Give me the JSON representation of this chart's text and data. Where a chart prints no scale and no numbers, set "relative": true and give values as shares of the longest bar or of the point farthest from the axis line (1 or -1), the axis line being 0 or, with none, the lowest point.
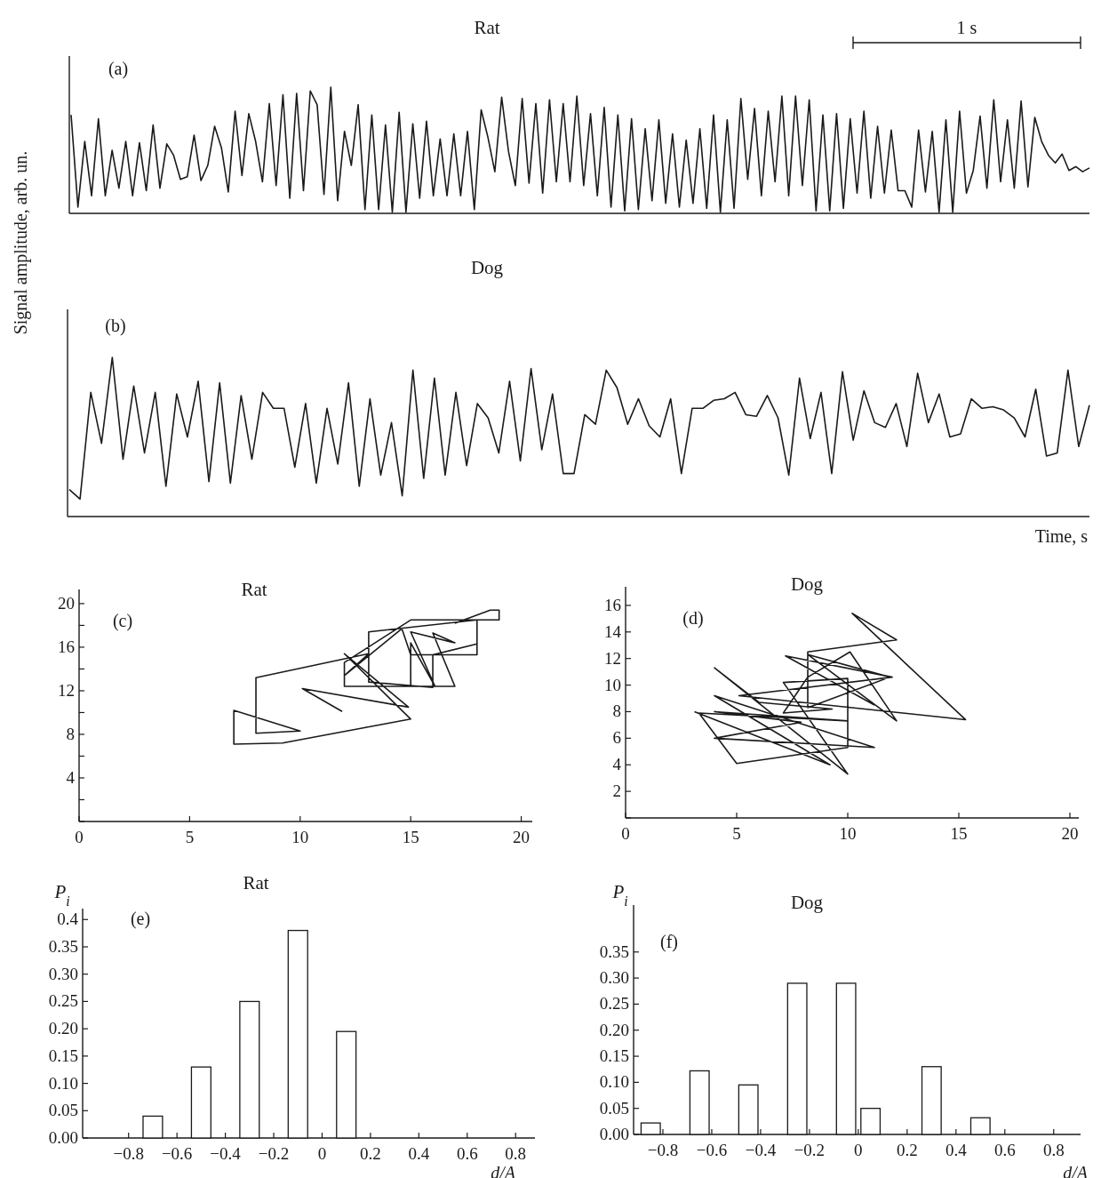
{
  "chart_data": [
    {
      "type": "line",
      "title": "Rat",
      "ylabel": "Signal amplitude, arb. un.",
      "annotations": [
        "(a)",
        "1 s"
      ],
      "relative": true,
      "color": "#1a1a1a",
      "categories": [
        null,
        null,
        null,
        null,
        null,
        null,
        null,
        null,
        null,
        null,
        null,
        null,
        null,
        null,
        null,
        null,
        null,
        null,
        null,
        null,
        null,
        null,
        null,
        null,
        null,
        null,
        null,
        null,
        null,
        null,
        null,
        null,
        null,
        null,
        null,
        null,
        null,
        null,
        null,
        null,
        null,
        null,
        null,
        null,
        null,
        null,
        null,
        null,
        null,
        null,
        null,
        null,
        null,
        null,
        null,
        null,
        null,
        null,
        null,
        null,
        null,
        null,
        null,
        null,
        null,
        null,
        null,
        null,
        null,
        null,
        null,
        null,
        null,
        null,
        null,
        null,
        null,
        null,
        null,
        null,
        null,
        null,
        null,
        null,
        null,
        null,
        null,
        null,
        null,
        null,
        null,
        null,
        null,
        null,
        null,
        null,
        null,
        null,
        null,
        null,
        null,
        null,
        null,
        null,
        null,
        null,
        null,
        null,
        null,
        null,
        null,
        null,
        null,
        null,
        null,
        null,
        null,
        null,
        null,
        null,
        null,
        null,
        null,
        null,
        null,
        null,
        null,
        null,
        null,
        null,
        null,
        null,
        null,
        null,
        null,
        null,
        null,
        null,
        null,
        null,
        null,
        null,
        null,
        null,
        null,
        null,
        null,
        null,
        null,
        null
      ],
      "values": [
        0.78,
        0.05,
        0.57,
        0.14,
        0.75,
        0.14,
        0.5,
        0.2,
        0.57,
        0.14,
        0.56,
        0.18,
        0.7,
        0.2,
        0.55,
        0.46,
        0.27,
        0.29,
        0.62,
        0.26,
        0.38,
        0.69,
        0.52,
        0.17,
        0.81,
        0.3,
        0.79,
        0.57,
        0.25,
        0.87,
        0.22,
        0.94,
        0.12,
        0.95,
        0.18,
        0.97,
        0.86,
        0.15,
        1.0,
        0.1,
        0.65,
        0.38,
        0.86,
        0.03,
        0.78,
        0.03,
        0.7,
        0.01,
        0.8,
        0.01,
        0.71,
        0.12,
        0.73,
        0.14,
        0.59,
        0.14,
        0.63,
        0.14,
        0.65,
        0.03,
        0.82,
        0.6,
        0.33,
        0.92,
        0.49,
        0.22,
        0.91,
        0.24,
        0.87,
        0.16,
        0.9,
        0.25,
        0.87,
        0.25,
        0.93,
        0.22,
        0.79,
        0.14,
        0.84,
        0.05,
        0.78,
        0.02,
        0.75,
        0.03,
        0.67,
        0.1,
        0.74,
        0.08,
        0.63,
        0.05,
        0.58,
        0.08,
        0.67,
        0.04,
        0.78,
        0.01,
        0.74,
        0.04,
        0.91,
        0.27,
        0.83,
        0.14,
        0.81,
        0.25,
        0.93,
        0.14,
        0.93,
        0.22,
        0.9,
        0.02,
        0.78,
        0.02,
        0.79,
        0.04,
        0.75,
        0.16,
        0.81,
        0.12,
        0.69,
        0.16,
        0.66,
        0.18,
        0.18,
        0.05,
        0.66,
        0.17,
        0.65,
        0.01,
        0.74,
        0.01,
        0.81,
        0.16,
        0.34,
        0.77,
        0.2,
        0.9,
        0.25,
        0.74,
        0.2,
        0.89,
        0.21,
        0.76,
        0.57,
        0.46,
        0.4,
        0.47,
        0.34,
        0.37,
        0.33,
        0.36
      ]
    },
    {
      "type": "line",
      "title": "Dog",
      "xlabel": "Time, s",
      "annotations": [
        "(b)"
      ],
      "relative": true,
      "color": "#1a1a1a",
      "categories": [
        null,
        null,
        null,
        null,
        null,
        null,
        null,
        null,
        null,
        null,
        null,
        null,
        null,
        null,
        null,
        null,
        null,
        null,
        null,
        null,
        null,
        null,
        null,
        null,
        null,
        null,
        null,
        null,
        null,
        null,
        null,
        null,
        null,
        null,
        null,
        null,
        null,
        null,
        null,
        null,
        null,
        null,
        null,
        null,
        null,
        null,
        null,
        null,
        null,
        null,
        null,
        null,
        null,
        null,
        null,
        null,
        null,
        null,
        null,
        null,
        null,
        null,
        null,
        null,
        null,
        null,
        null,
        null,
        null,
        null,
        null,
        null,
        null,
        null,
        null,
        null,
        null,
        null,
        null,
        null,
        null,
        null,
        null,
        null,
        null,
        null,
        null,
        null,
        null,
        null,
        null,
        null,
        null,
        null,
        null,
        null
      ],
      "values": [
        0.17,
        0.11,
        0.78,
        0.46,
        1.0,
        0.36,
        0.82,
        0.4,
        0.78,
        0.19,
        0.77,
        0.5,
        0.85,
        0.22,
        0.84,
        0.21,
        0.76,
        0.36,
        0.78,
        0.68,
        0.68,
        0.31,
        0.71,
        0.21,
        0.68,
        0.33,
        0.84,
        0.19,
        0.74,
        0.26,
        0.59,
        0.13,
        0.92,
        0.24,
        0.87,
        0.26,
        0.78,
        0.32,
        0.71,
        0.62,
        0.4,
        0.85,
        0.35,
        0.93,
        0.42,
        0.77,
        0.27,
        0.27,
        0.64,
        0.58,
        0.92,
        0.81,
        0.58,
        0.74,
        0.57,
        0.5,
        0.74,
        0.27,
        0.68,
        0.68,
        0.73,
        0.74,
        0.78,
        0.64,
        0.63,
        0.76,
        0.62,
        0.26,
        0.87,
        0.49,
        0.78,
        0.27,
        0.91,
        0.48,
        0.79,
        0.59,
        0.56,
        0.71,
        0.44,
        0.9,
        0.59,
        0.77,
        0.5,
        0.52,
        0.74,
        0.68,
        0.69,
        0.67,
        0.62,
        0.5,
        0.8,
        0.38,
        0.4,
        0.92,
        0.44,
        0.7
      ]
    },
    {
      "type": "line",
      "title": "Rat",
      "annotations": [
        "(c)"
      ],
      "color": "#1a1a1a",
      "xlim": [
        0,
        20.5
      ],
      "ylim": [
        0,
        21.3
      ],
      "xticks": [
        0,
        5,
        10,
        15,
        20
      ],
      "yticks": [
        {
          "value": 0,
          "label": null
        },
        {
          "value": 2,
          "label": null
        },
        4,
        {
          "value": 6,
          "label": null
        },
        8,
        {
          "value": 10,
          "label": null
        },
        12,
        {
          "value": 14,
          "label": null
        },
        16,
        {
          "value": 18,
          "label": null
        },
        20
      ],
      "x": [
        11.9,
        10.1,
        14.9,
        12.0,
        15.0,
        9.2,
        7.0,
        7.0,
        10.0,
        8.0,
        8.0,
        13.1,
        12.0,
        12.0,
        17.0,
        16.0,
        17.0,
        15.0,
        16.1,
        15.0,
        15.0,
        15.0,
        18.0,
        18.0,
        13.1,
        13.1,
        16.0,
        16.0,
        18.0,
        18.0,
        15.0,
        14.6,
        12.0,
        12.0,
        15.0,
        19.0,
        19.0,
        18.6,
        17.0
      ],
      "values": [
        10.1,
        12.2,
        10.5,
        15.4,
        9.4,
        7.2,
        7.1,
        10.2,
        8.3,
        8.1,
        13.2,
        15.4,
        13.4,
        12.4,
        12.4,
        17.3,
        16.4,
        17.4,
        12.4,
        16.4,
        12.4,
        15.3,
        15.3,
        18.5,
        17.4,
        12.8,
        12.3,
        15.3,
        16.3,
        15.3,
        15.3,
        17.7,
        13.4,
        14.6,
        18.5,
        18.5,
        19.4,
        19.4,
        18.2
      ]
    },
    {
      "type": "line",
      "title": "Dog",
      "annotations": [
        "(d)"
      ],
      "color": "#1a1a1a",
      "xlim": [
        0,
        20.4
      ],
      "ylim": [
        0,
        17.4
      ],
      "xticks": [
        0,
        5,
        10,
        15,
        20
      ],
      "yticks": [
        {
          "value": 0,
          "label": null
        },
        2,
        4,
        6,
        8,
        10,
        12,
        14,
        16
      ],
      "x": [
        3.1,
        9.2,
        4.0,
        11.2,
        4.0,
        7.9,
        4.0,
        10.0,
        3.3,
        5.0,
        10.0,
        10.0,
        7.1,
        10.0,
        4.0,
        6.0,
        9.3,
        7.1,
        8.2,
        10.1,
        12.2,
        8.2,
        11.9,
        8.2,
        8.2,
        12.2,
        10.2,
        15.3,
        5.1,
        12.0,
        7.2,
        11.2
      ],
      "values": [
        8.0,
        4.0,
        9.2,
        5.3,
        6.0,
        7.2,
        8.0,
        7.3,
        7.9,
        4.1,
        5.3,
        10.5,
        10.2,
        3.3,
        11.3,
        8.7,
        8.2,
        7.9,
        10.6,
        12.5,
        7.3,
        12.3,
        10.6,
        8.3,
        12.5,
        13.4,
        15.4,
        7.4,
        9.2,
        10.6,
        12.2,
        8.5
      ]
    },
    {
      "type": "bar",
      "title": "Rat",
      "xlabel": "d/A",
      "ylabel": "P$_{i}$",
      "annotations": [
        "(e)"
      ],
      "color": "#ffffff",
      "xlim": [
        -0.99,
        0.88
      ],
      "ylim": [
        0,
        0.42
      ],
      "xticks": [
        {
          "value": -0.8,
          "label": "−0.8"
        },
        {
          "value": -0.6,
          "label": "−0.6"
        },
        {
          "value": -0.4,
          "label": "−0.4"
        },
        {
          "value": -0.2,
          "label": "−0.2"
        },
        0,
        0.2,
        0.4,
        0.6,
        0.8
      ],
      "yticks": [
        {
          "value": 0,
          "label": "0.00"
        },
        0.05,
        {
          "value": 0.1,
          "label": "0.10"
        },
        0.15,
        {
          "value": 0.2,
          "label": "0.20"
        },
        0.25,
        {
          "value": 0.3,
          "label": "0.30"
        },
        0.35,
        0.4
      ],
      "x": [
        -0.7,
        -0.5,
        -0.3,
        -0.1,
        0.1
      ],
      "values": [
        0.04,
        0.13,
        0.25,
        0.38,
        0.195
      ]
    },
    {
      "type": "bar",
      "title": "Dog",
      "xlabel": "d/A",
      "ylabel": "P$_{i}$",
      "annotations": [
        "(f)"
      ],
      "color": "#ffffff",
      "xlim": [
        -0.92,
        0.91
      ],
      "ylim": [
        0,
        0.44
      ],
      "xticks": [
        {
          "value": -0.8,
          "label": "−0.8"
        },
        {
          "value": -0.6,
          "label": "−0.6"
        },
        {
          "value": -0.4,
          "label": "−0.4"
        },
        {
          "value": -0.2,
          "label": "−0.2"
        },
        0,
        0.2,
        0.4,
        0.6,
        0.8
      ],
      "yticks": [
        {
          "value": 0,
          "label": "0.00"
        },
        0.05,
        {
          "value": 0.1,
          "label": "0.10"
        },
        0.15,
        {
          "value": 0.2,
          "label": "0.20"
        },
        0.25,
        {
          "value": 0.3,
          "label": "0.30"
        },
        0.35
      ],
      "x": [
        -0.85,
        -0.65,
        -0.45,
        -0.25,
        -0.05,
        0.05,
        0.3,
        0.5
      ],
      "values": [
        0.022,
        0.122,
        0.095,
        0.29,
        0.29,
        0.05,
        0.13,
        0.032
      ]
    }
  ]
}
